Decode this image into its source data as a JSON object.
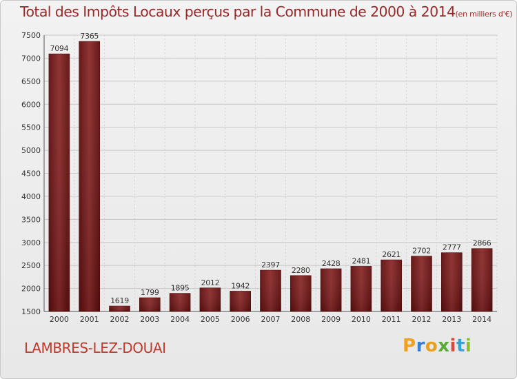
{
  "chart_data": {
    "type": "bar",
    "title": "Total des Impôts Locaux perçus par la Commune de 2000 à 2014",
    "unit": "(en milliers d'€)",
    "categories": [
      "2000",
      "2001",
      "2002",
      "2003",
      "2004",
      "2005",
      "2006",
      "2007",
      "2008",
      "2009",
      "2010",
      "2011",
      "2012",
      "2013",
      "2014"
    ],
    "values": [
      7094,
      7365,
      1619,
      1799,
      1895,
      2012,
      1942,
      2397,
      2280,
      2428,
      2481,
      2621,
      2702,
      2777,
      2866
    ],
    "ylim": [
      1500,
      7500
    ],
    "yticks": [
      1500,
      2000,
      2500,
      3000,
      3500,
      4000,
      4500,
      5000,
      5500,
      6000,
      6500,
      7000,
      7500
    ],
    "grid": true,
    "bar_color": "#7a1a1a"
  },
  "commune": "LAMBRES-LEZ-DOUAI",
  "logo": {
    "letters": [
      "P",
      "r",
      "o",
      "x",
      "i",
      "t",
      "i"
    ]
  }
}
